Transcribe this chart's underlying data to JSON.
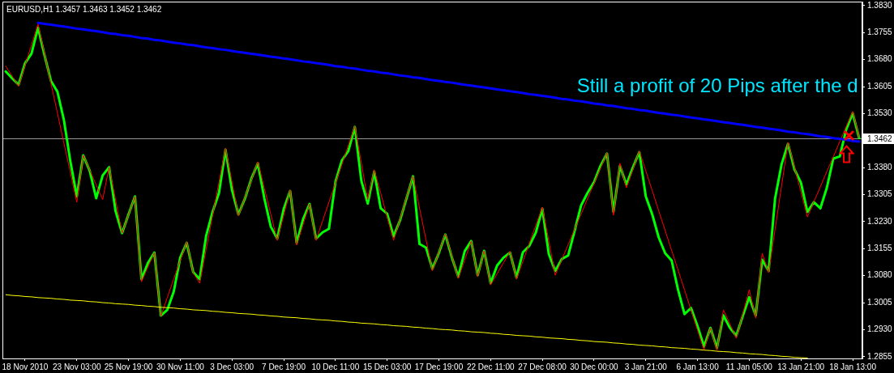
{
  "chart_data": {
    "type": "line",
    "title": "EURUSD,H1 1.3457 1.3463 1.3452 1.3462",
    "categories": [
      null,
      null,
      null,
      "18 Nov 2010",
      null,
      null,
      null,
      null,
      null,
      null,
      null,
      "23 Nov 03:00",
      null,
      null,
      null,
      null,
      null,
      null,
      null,
      "25 Nov 19:00",
      null,
      null,
      null,
      null,
      null,
      null,
      null,
      "30 Nov 11:00",
      null,
      null,
      null,
      null,
      null,
      null,
      null,
      "3 Dec 03:00",
      null,
      null,
      null,
      null,
      null,
      null,
      null,
      "7 Dec 19:00",
      null,
      null,
      null,
      null,
      null,
      null,
      null,
      "10 Dec 11:00",
      null,
      null,
      null,
      null,
      null,
      null,
      null,
      "15 Dec 03:00",
      null,
      null,
      null,
      null,
      null,
      null,
      null,
      "17 Dec 19:00",
      null,
      null,
      null,
      null,
      null,
      null,
      null,
      "22 Dec 11:00",
      null,
      null,
      null,
      null,
      null,
      null,
      null,
      "27 Dec 08:00",
      null,
      null,
      null,
      null,
      null,
      null,
      null,
      "30 Dec 00:00",
      null,
      null,
      null,
      null,
      null,
      null,
      null,
      "3 Jan 21:00",
      null,
      null,
      null,
      null,
      null,
      null,
      null,
      "6 Jan 13:00",
      null,
      null,
      null,
      null,
      null,
      null,
      null,
      "11 Jan 05:00",
      null,
      null,
      null,
      null,
      null,
      null,
      null,
      "13 Jan 21:00",
      null,
      null,
      null,
      null,
      null,
      null,
      null,
      "18 Jan 13:00",
      null
    ],
    "ylim": [
      1.285,
      1.3841
    ],
    "yticks": [
      {
        "value": 1.383,
        "label": "1.3830"
      },
      1.3755,
      {
        "value": 1.368,
        "label": "1.3680"
      },
      1.3605,
      {
        "value": 1.353,
        "label": "1.3530"
      },
      {
        "value": 1.338,
        "label": "1.3380"
      },
      1.3305,
      {
        "value": 1.323,
        "label": "1.3230"
      },
      1.3155,
      {
        "value": 1.308,
        "label": "1.3080"
      },
      1.3005,
      {
        "value": 1.293,
        "label": "1.2930"
      },
      1.2855
    ],
    "series": [
      {
        "color": "#00ff00",
        "values": [
          1.3647,
          1.3628,
          1.361,
          1.367,
          1.3697,
          1.3769,
          1.3693,
          1.3621,
          1.3591,
          1.3513,
          1.3398,
          1.33,
          1.3414,
          1.3371,
          1.3295,
          1.3358,
          1.3381,
          1.3259,
          1.3198,
          1.325,
          1.33,
          1.307,
          1.3115,
          1.3144,
          1.2969,
          1.2985,
          1.3036,
          1.313,
          1.3171,
          1.309,
          1.307,
          1.319,
          1.3257,
          1.331,
          1.343,
          1.3318,
          1.325,
          1.3294,
          1.3349,
          1.3392,
          1.3295,
          1.3216,
          1.3183,
          1.3265,
          1.3315,
          1.3171,
          1.3237,
          1.3279,
          1.3183,
          1.32,
          1.321,
          1.334,
          1.34,
          1.3426,
          1.3493,
          1.3344,
          1.328,
          1.3369,
          1.3267,
          1.3252,
          1.3189,
          1.3234,
          1.3295,
          1.3356,
          1.3168,
          1.3158,
          1.3099,
          1.3143,
          1.3194,
          1.3131,
          1.3077,
          1.3148,
          1.3176,
          1.3081,
          1.3149,
          1.3059,
          1.3108,
          1.313,
          1.3144,
          1.3075,
          1.3145,
          1.3163,
          1.32,
          1.3266,
          1.314,
          1.3093,
          1.3126,
          1.3136,
          1.3205,
          1.3275,
          1.331,
          1.334,
          1.3385,
          1.3419,
          1.3257,
          1.3385,
          1.3333,
          1.338,
          1.3423,
          1.33,
          1.325,
          1.3186,
          1.3142,
          1.3122,
          1.304,
          1.2973,
          1.299,
          1.294,
          1.2883,
          1.2935,
          1.2879,
          1.297,
          1.2935,
          1.2913,
          1.2968,
          1.302,
          1.2969,
          1.3124,
          1.3093,
          1.3295,
          1.3389,
          1.3446,
          1.3375,
          1.3338,
          1.3257,
          1.3284,
          1.3267,
          1.3324,
          1.3405,
          1.3411,
          1.3486,
          1.3531,
          1.3462
        ]
      },
      {
        "color": "#ff0000",
        "values": [
          1.3662,
          1.3634,
          1.3606,
          1.3664,
          1.3721,
          1.3779,
          1.3697,
          1.3614,
          1.3532,
          1.3449,
          1.3367,
          1.3284,
          1.3414,
          1.3373,
          1.3332,
          1.3291,
          1.3381,
          1.329,
          1.3198,
          1.3249,
          1.33,
          1.3063,
          1.3104,
          1.3144,
          1.2967,
          1.3019,
          1.3071,
          1.3122,
          1.3174,
          1.3088,
          1.3059,
          1.3153,
          1.3247,
          1.334,
          1.3434,
          1.334,
          1.3246,
          1.3296,
          1.3346,
          1.3396,
          1.3323,
          1.3251,
          1.3178,
          1.3248,
          1.3318,
          1.3165,
          1.3222,
          1.3279,
          1.3178,
          1.3231,
          1.3284,
          1.3337,
          1.3389,
          1.3442,
          1.3495,
          1.3393,
          1.3291,
          1.3374,
          1.3309,
          1.3243,
          1.3178,
          1.3237,
          1.3297,
          1.3356,
          1.3268,
          1.3181,
          1.3093,
          1.3145,
          1.3196,
          1.3134,
          1.3072,
          1.3124,
          1.3176,
          1.3077,
          1.3149,
          1.3054,
          1.3085,
          1.3116,
          1.3147,
          1.307,
          1.312,
          1.317,
          1.322,
          1.327,
          1.3176,
          1.3081,
          1.3124,
          1.3166,
          1.3209,
          1.3251,
          1.3294,
          1.3336,
          1.3379,
          1.3421,
          1.3248,
          1.3392,
          1.3324,
          1.3375,
          1.3426,
          1.3371,
          1.3316,
          1.326,
          1.3205,
          1.315,
          1.3095,
          1.304,
          1.2984,
          1.2929,
          1.2874,
          1.2935,
          1.2872,
          1.2985,
          1.2946,
          1.2906,
          1.2974,
          1.3041,
          1.2962,
          1.3142,
          1.3088,
          1.3209,
          1.3329,
          1.345,
          1.3381,
          1.3312,
          1.3243,
          1.3285,
          1.3327,
          1.3369,
          1.341,
          1.3452,
          1.3494,
          1.3536,
          1.3464
        ]
      },
      {
        "color": "#0000ff",
        "values": [
          null,
          null,
          null,
          null,
          null,
          1.3782,
          1.3779,
          1.3777,
          1.3774,
          1.3772,
          1.3769,
          1.3766,
          1.3764,
          1.3761,
          1.3759,
          1.3756,
          1.3753,
          1.3751,
          1.3748,
          1.3746,
          1.3743,
          1.374,
          1.3738,
          1.3735,
          1.3733,
          1.373,
          1.3727,
          1.3725,
          1.3722,
          1.372,
          1.3717,
          1.3714,
          1.3712,
          1.3709,
          1.3707,
          1.3704,
          1.3701,
          1.3699,
          1.3696,
          1.3694,
          1.3691,
          1.3688,
          1.3686,
          1.3683,
          1.3681,
          1.3678,
          1.3675,
          1.3673,
          1.367,
          1.3668,
          1.3665,
          1.3662,
          1.366,
          1.3657,
          1.3655,
          1.3652,
          1.3649,
          1.3647,
          1.3644,
          1.3642,
          1.3639,
          1.3636,
          1.3634,
          1.3631,
          1.3629,
          1.3626,
          1.3623,
          1.3621,
          1.3618,
          1.3616,
          1.3613,
          1.361,
          1.3608,
          1.3605,
          1.3603,
          1.36,
          1.3597,
          1.3595,
          1.3592,
          1.359,
          1.3587,
          1.3584,
          1.3582,
          1.3579,
          1.3577,
          1.3574,
          1.3571,
          1.3569,
          1.3566,
          1.3564,
          1.3561,
          1.3558,
          1.3556,
          1.3553,
          1.3551,
          1.3548,
          1.3545,
          1.3543,
          1.354,
          1.3538,
          1.3535,
          1.3532,
          1.353,
          1.3527,
          1.3525,
          1.3522,
          1.3519,
          1.3517,
          1.3514,
          1.3512,
          1.3509,
          1.3506,
          1.3504,
          1.3501,
          1.3499,
          1.3496,
          1.3493,
          1.3491,
          1.3488,
          1.3486,
          1.3483,
          1.348,
          1.3478,
          1.3475,
          1.3473,
          1.347,
          1.3467,
          1.3465,
          1.3462,
          1.346,
          1.3457,
          1.3454,
          1.3452
        ]
      },
      {
        "color": "#ffff00",
        "values": [
          1.3027,
          1.3025,
          1.3024,
          1.3022,
          1.3021,
          1.3019,
          1.3018,
          1.3017,
          1.3015,
          1.3014,
          1.3012,
          1.3011,
          1.301,
          1.3008,
          1.3007,
          1.3005,
          1.3004,
          1.3002,
          1.3001,
          1.3,
          1.2998,
          1.2997,
          1.2995,
          1.2994,
          1.2992,
          1.2991,
          1.299,
          1.2988,
          1.2987,
          1.2985,
          1.2984,
          1.2983,
          1.2981,
          1.298,
          1.2978,
          1.2977,
          1.2975,
          1.2974,
          1.2973,
          1.2971,
          1.297,
          1.2968,
          1.2967,
          1.2965,
          1.2964,
          1.2963,
          1.2961,
          1.296,
          1.2958,
          1.2957,
          1.2956,
          1.2954,
          1.2953,
          1.2951,
          1.295,
          1.2948,
          1.2947,
          1.2946,
          1.2944,
          1.2943,
          1.2941,
          1.294,
          1.2939,
          1.2937,
          1.2936,
          1.2934,
          1.2933,
          1.2931,
          1.293,
          1.2929,
          1.2927,
          1.2926,
          1.2924,
          1.2923,
          1.2922,
          1.292,
          1.2919,
          1.2917,
          1.2916,
          1.2914,
          1.2913,
          1.2912,
          1.291,
          1.2909,
          1.2907,
          1.2906,
          1.2905,
          1.2903,
          1.2902,
          1.29,
          1.2899,
          1.2897,
          1.2896,
          1.2895,
          1.2893,
          1.2892,
          1.289,
          1.2889,
          1.2887,
          1.2886,
          1.2885,
          1.2883,
          1.2882,
          1.288,
          1.2879,
          1.2878,
          1.2876,
          1.2875,
          1.2873,
          1.2872,
          1.287,
          1.2869,
          1.2868,
          1.2866,
          1.2865,
          1.2863,
          1.2862,
          1.2861,
          1.2859,
          1.2858,
          1.2856,
          1.2855,
          1.2853,
          1.2852,
          1.2851,
          null,
          null,
          null,
          null,
          null,
          null,
          null,
          null
        ]
      }
    ],
    "ref_lines": [
      {
        "axis": "y",
        "value": 1.3462,
        "label": "1.3462",
        "color": "#969696"
      }
    ],
    "annotations": [
      "Still a profit of 20 Pips after the d"
    ]
  }
}
